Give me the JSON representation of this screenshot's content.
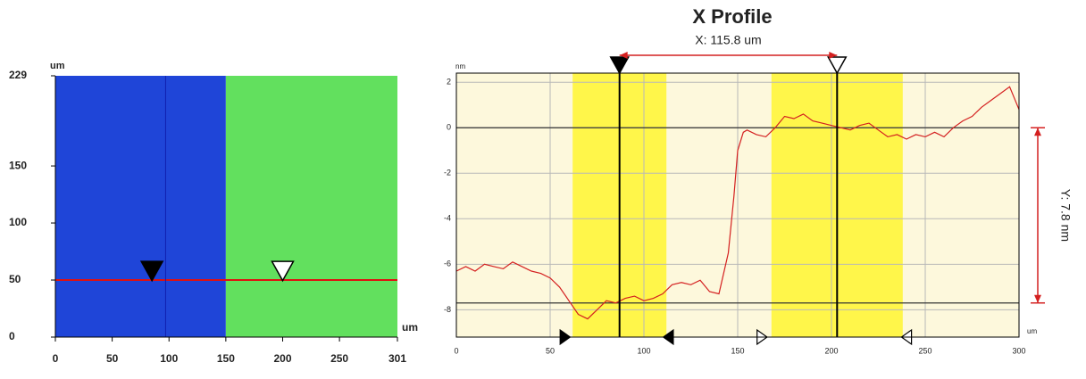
{
  "chart_data": [
    {
      "type": "heatmap",
      "x_unit": "um",
      "y_unit": "um",
      "xlim": [
        0,
        301
      ],
      "ylim": [
        0,
        229
      ],
      "xticks": [
        0,
        50,
        100,
        150,
        200,
        250,
        301
      ],
      "yticks": [
        0,
        50,
        100,
        150,
        229
      ],
      "regions": [
        {
          "x": [
            0,
            150
          ],
          "color": "#1f45d8"
        },
        {
          "x": [
            150,
            301
          ],
          "color": "#62e05e"
        }
      ],
      "line_y": 50,
      "line_y_color": "#e01010",
      "line_x": 97,
      "line_x_color": "#1020b0",
      "markers_x": [
        85,
        200
      ],
      "marker_y": 57
    },
    {
      "type": "line",
      "title": "X Profile",
      "y_unit": "nm",
      "x_unit": "um",
      "xlim": [
        0,
        300
      ],
      "ylim": [
        -9.2,
        2.4
      ],
      "xticks": [
        0,
        50,
        100,
        150,
        200,
        250,
        300
      ],
      "yticks": [
        -8,
        -6,
        -4,
        -2,
        0,
        2
      ],
      "grid": true,
      "x": [
        0,
        5,
        10,
        15,
        20,
        25,
        30,
        35,
        40,
        45,
        50,
        55,
        60,
        65,
        70,
        75,
        80,
        85,
        90,
        95,
        100,
        105,
        110,
        115,
        120,
        125,
        130,
        135,
        140,
        145,
        148,
        150,
        153,
        155,
        160,
        165,
        170,
        175,
        180,
        185,
        190,
        195,
        200,
        205,
        210,
        215,
        220,
        225,
        230,
        235,
        240,
        245,
        250,
        255,
        260,
        265,
        270,
        275,
        280,
        285,
        290,
        295,
        300
      ],
      "series": [
        {
          "color": "#d42020",
          "values": [
            -6.3,
            -6.1,
            -6.3,
            -6.0,
            -6.1,
            -6.2,
            -5.9,
            -6.1,
            -6.3,
            -6.4,
            -6.6,
            -7.0,
            -7.6,
            -8.2,
            -8.4,
            -8.0,
            -7.6,
            -7.7,
            -7.5,
            -7.4,
            -7.6,
            -7.5,
            -7.3,
            -6.9,
            -6.8,
            -6.9,
            -6.7,
            -7.2,
            -7.3,
            -5.5,
            -3.0,
            -1.0,
            -0.2,
            -0.1,
            -0.3,
            -0.4,
            0.0,
            0.5,
            0.4,
            0.6,
            0.3,
            0.2,
            0.1,
            0.0,
            -0.1,
            0.1,
            0.2,
            -0.1,
            -0.4,
            -0.3,
            -0.5,
            -0.3,
            -0.4,
            -0.2,
            -0.4,
            0.0,
            0.3,
            0.5,
            0.9,
            1.2,
            1.5,
            1.8,
            0.8
          ]
        }
      ],
      "bands": [
        [
          62,
          112
        ],
        [
          168,
          238
        ]
      ],
      "band_color": "#fff64a",
      "background": "#fdf8dc",
      "cursors": [
        87,
        203
      ],
      "range_markers": [
        58,
        113,
        163,
        240
      ],
      "ref_lines": [
        0,
        -7.7
      ],
      "x_span": {
        "text": "X: 115.8 um",
        "from": 87,
        "to": 203
      },
      "y_span": {
        "text": "Y: 7.8 nm",
        "from": 0,
        "to": -7.7
      }
    }
  ]
}
